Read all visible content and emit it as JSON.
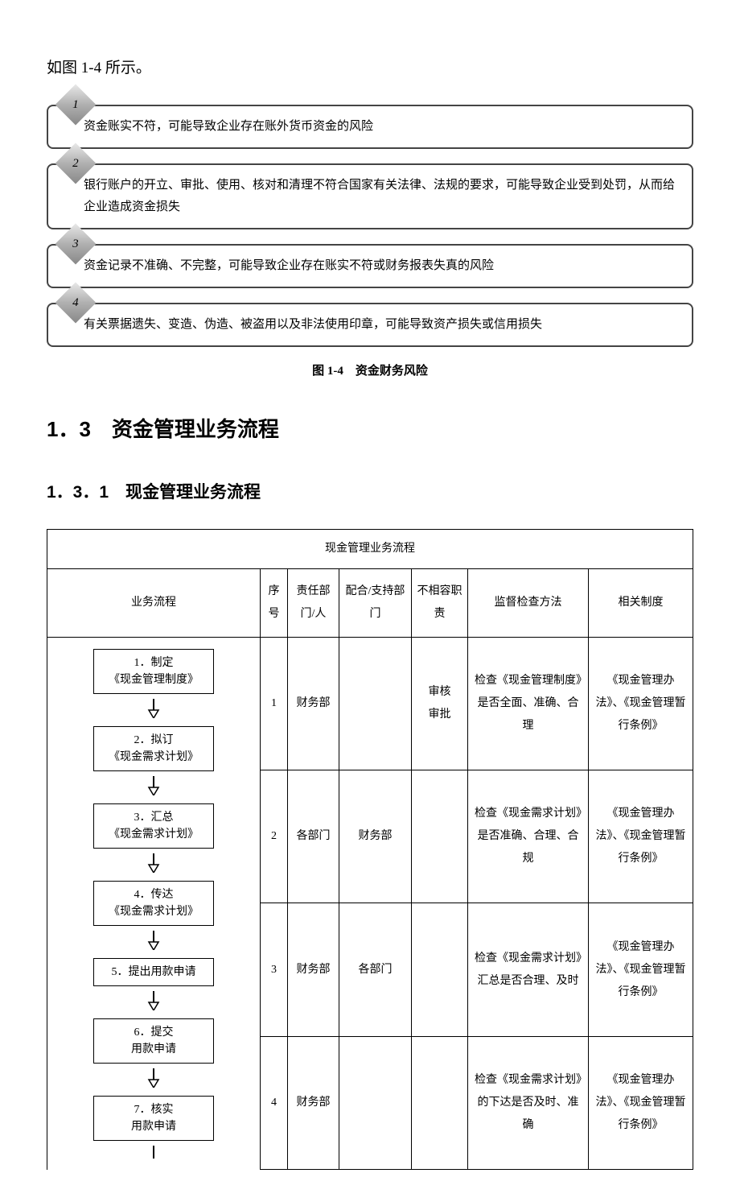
{
  "intro": "如图 1-4 所示。",
  "risks": [
    {
      "num": "1",
      "text": "资金账实不符，可能导致企业存在账外货币资金的风险"
    },
    {
      "num": "2",
      "text": "银行账户的开立、审批、使用、核对和清理不符合国家有关法律、法规的要求，可能导致企业受到处罚，从而给企业造成资金损失"
    },
    {
      "num": "3",
      "text": "资金记录不准确、不完整，可能导致企业存在账实不符或财务报表失真的风险"
    },
    {
      "num": "4",
      "text": "有关票据遗失、变造、伪造、被盗用以及非法使用印章，可能导致资产损失或信用损失"
    }
  ],
  "figure_caption": "图 1-4　资金财务风险",
  "section_heading": "1．3　资金管理业务流程",
  "subsection_heading": "1．3．1　现金管理业务流程",
  "table": {
    "title": "现金管理业务流程",
    "headers": {
      "flow": "业务流程",
      "seq": "序号",
      "dept": "责任部门/人",
      "support": "配合/支持部门",
      "incompat": "不相容职责",
      "monitor": "监督检查方法",
      "system": "相关制度"
    },
    "flow_steps": [
      "1．制定\n《现金管理制度》",
      "2．拟订\n《现金需求计划》",
      "3．汇总\n《现金需求计划》",
      "4．传达\n《现金需求计划》",
      "5．提出用款申请",
      "6．提交\n用款申请",
      "7．核实\n用款申请"
    ],
    "rows": [
      {
        "seq": "1",
        "dept": "财务部",
        "support": "",
        "incompat": "审核\n审批",
        "monitor": "检查《现金管理制度》是否全面、准确、合理",
        "system": "《现金管理办法》、《现金管理暂行条例》"
      },
      {
        "seq": "2",
        "dept": "各部门",
        "support": "财务部",
        "incompat": "",
        "monitor": "检查《现金需求计划》是否准确、合理、合规",
        "system": "《现金管理办法》、《现金管理暂行条例》"
      },
      {
        "seq": "3",
        "dept": "财务部",
        "support": "各部门",
        "incompat": "",
        "monitor": "检查《现金需求计划》汇总是否合理、及时",
        "system": "《现金管理办法》、《现金管理暂行条例》"
      },
      {
        "seq": "4",
        "dept": "财务部",
        "support": "",
        "incompat": "",
        "monitor": "检查《现金需求计划》的下达是否及时、准确",
        "system": "《现金管理办法》、《现金管理暂行条例》"
      }
    ]
  },
  "colors": {
    "border": "#000000",
    "diamond_light": "#e8e8e8",
    "diamond_dark": "#888888",
    "background": "#ffffff"
  }
}
